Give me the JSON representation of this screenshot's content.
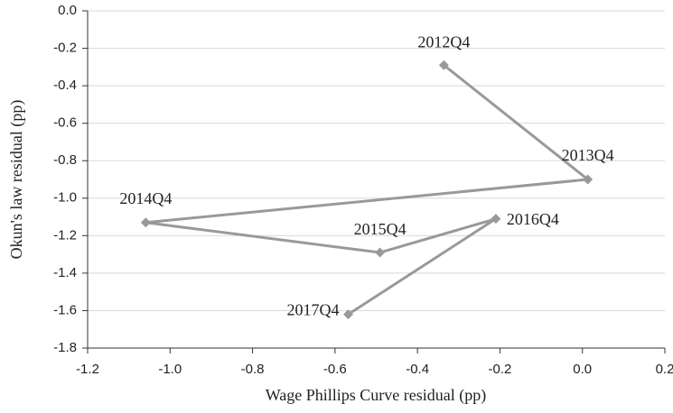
{
  "chart_data": {
    "type": "connected-scatter",
    "x_label": "Wage Phillips Curve residual (pp)",
    "y_label": "Okun's law residual (pp)",
    "x": [
      -0.336,
      0.013,
      -1.059,
      -0.491,
      -0.21,
      -0.568
    ],
    "series": [
      {
        "color": "#999999",
        "values": [
          -0.29,
          -0.9,
          -1.13,
          -1.29,
          -1.11,
          -1.62
        ]
      }
    ],
    "point_labels": [
      "2012Q4",
      "2013Q4",
      "2014Q4",
      "2015Q4",
      "2016Q4",
      "2017Q4"
    ],
    "xlim": [
      -1.2,
      0.2
    ],
    "xticks": [
      -1.2,
      {
        "value": -1,
        "label": "-1.0"
      },
      -0.8,
      -0.6,
      -0.4,
      -0.2,
      {
        "value": 0,
        "label": "0.0"
      },
      0.2
    ],
    "ylim": [
      -1.8,
      0
    ],
    "yticks": [
      {
        "value": 0,
        "label": "0.0"
      },
      -0.2,
      -0.4,
      -0.6,
      -0.8,
      {
        "value": -1,
        "label": "-1.0"
      },
      -1.2,
      -1.4,
      -1.6,
      -1.8
    ],
    "grid": true
  }
}
